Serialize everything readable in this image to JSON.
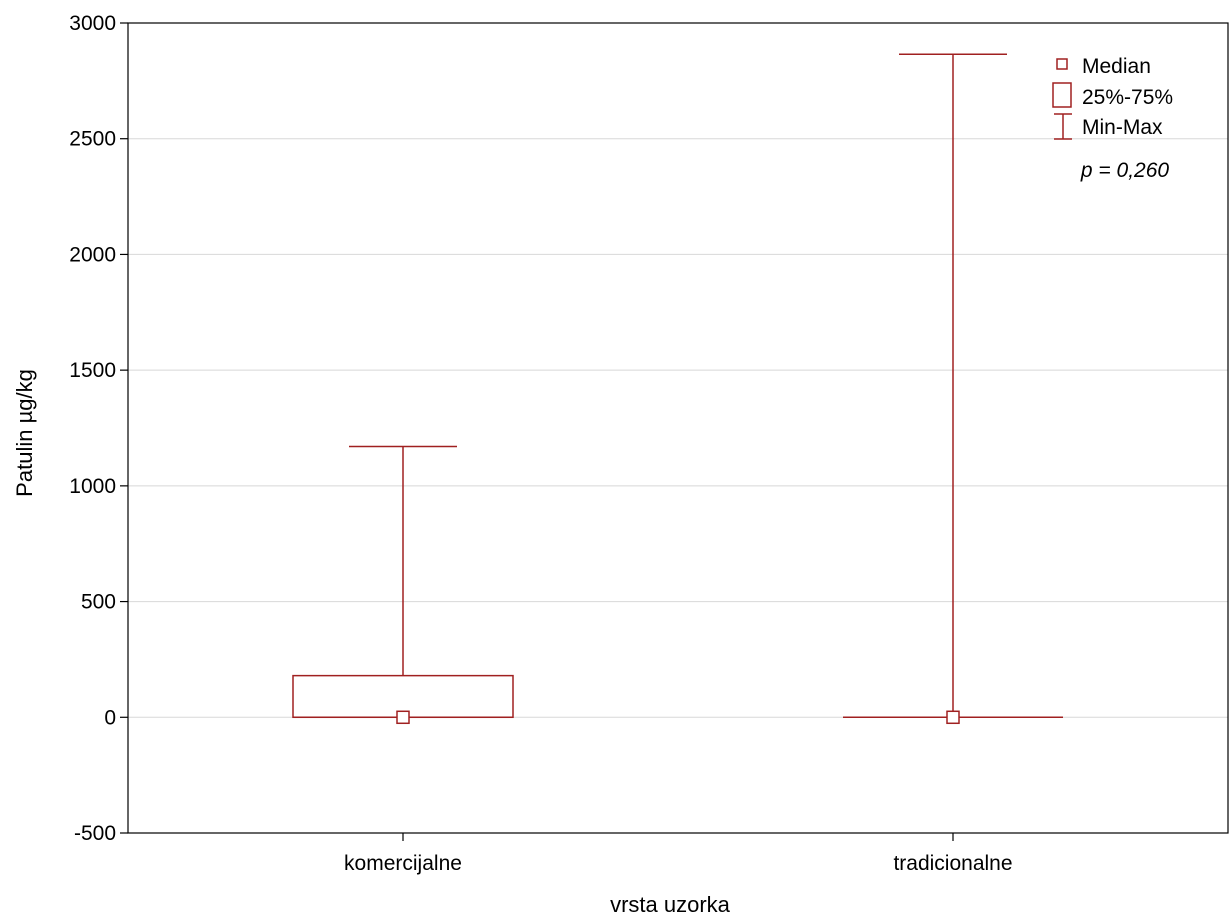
{
  "chart_data": {
    "type": "boxplot",
    "xlabel": "vrsta uzorka",
    "ylabel": "Patulin µg/kg",
    "ylim": [
      -500,
      3000
    ],
    "yticks": [
      "-500",
      "0",
      "500",
      "1000",
      "1500",
      "2000",
      "2500",
      "3000"
    ],
    "ytick_values": [
      -500,
      0,
      500,
      1000,
      1500,
      2000,
      2500,
      3000
    ],
    "grid": true,
    "categories": [
      "komercijalne",
      "tradicionalne"
    ],
    "boxes": [
      {
        "category": "komercijalne",
        "min": 0,
        "q1": 0,
        "median": 0,
        "q3": 180,
        "max": 1170
      },
      {
        "category": "tradicionalne",
        "min": 0,
        "q1": 0,
        "median": 0,
        "q3": 0,
        "max": 2865
      }
    ],
    "legend": {
      "position": "top-right",
      "entries": [
        "Median",
        "25%-75%",
        "Min-Max"
      ]
    },
    "annotation": "p = 0,260",
    "colors": {
      "series": "#a02020",
      "grid": "#d8d8d8",
      "axis": "#000000"
    }
  }
}
